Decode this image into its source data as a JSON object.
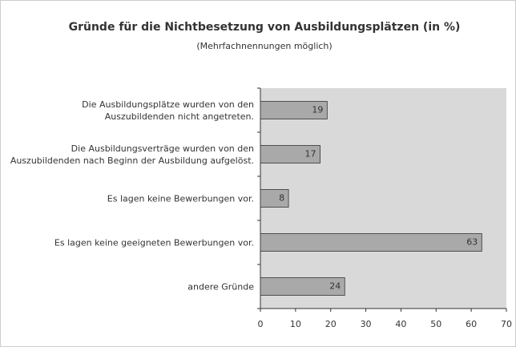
{
  "chart_data": {
    "type": "bar",
    "orientation": "horizontal",
    "title": "Gründe für die Nichtbesetzung von Ausbildungsplätzen (in %)",
    "subtitle": "(Mehrfachnennungen möglich)",
    "categories": [
      "Die Ausbildungsplätze wurden von den Auszubildenden nicht angetreten.",
      "Die Ausbildungsverträge wurden von den Auszubildenden nach Beginn der Ausbildung aufgelöst.",
      "Es lagen keine Bewerbungen vor.",
      "Es lagen keine geeigneten Bewerbungen vor.",
      "andere Gründe"
    ],
    "values": [
      19,
      17,
      8,
      63,
      24
    ],
    "color": "#a9a9a9",
    "plot_background": "#d9d9d9",
    "xlim": [
      0,
      70
    ],
    "xticks": [
      0,
      10,
      20,
      30,
      40,
      50,
      60,
      70
    ]
  }
}
